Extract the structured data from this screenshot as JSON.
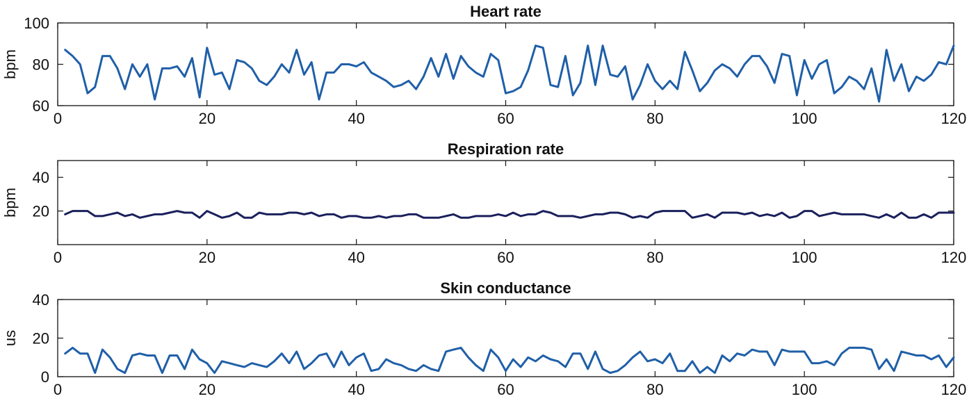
{
  "figure": {
    "background": "#ffffff",
    "axis_color": "#111111"
  },
  "chart_data": [
    {
      "type": "line",
      "title": "Heart rate",
      "ylabel": "bpm",
      "xlabel": "",
      "xlim": [
        0,
        120
      ],
      "ylim": [
        60,
        100
      ],
      "xticks": [
        0,
        20,
        40,
        60,
        80,
        100,
        120
      ],
      "yticks": [
        60,
        80,
        100
      ],
      "line_color": "#1f5fa8",
      "series": [
        {
          "name": "Heart rate",
          "x": [
            1,
            2,
            3,
            4,
            5,
            6,
            7,
            8,
            9,
            10,
            11,
            12,
            13,
            14,
            15,
            16,
            17,
            18,
            19,
            20,
            21,
            22,
            23,
            24,
            25,
            26,
            27,
            28,
            29,
            30,
            31,
            32,
            33,
            34,
            35,
            36,
            37,
            38,
            39,
            40,
            41,
            42,
            43,
            44,
            45,
            46,
            47,
            48,
            49,
            50,
            51,
            52,
            53,
            54,
            55,
            56,
            57,
            58,
            59,
            60,
            61,
            62,
            63,
            64,
            65,
            66,
            67,
            68,
            69,
            70,
            71,
            72,
            73,
            74,
            75,
            76,
            77,
            78,
            79,
            80,
            81,
            82,
            83,
            84,
            85,
            86,
            87,
            88,
            89,
            90,
            91,
            92,
            93,
            94,
            95,
            96,
            97,
            98,
            99,
            100,
            101,
            102,
            103,
            104,
            105,
            106,
            107,
            108,
            109,
            110,
            111,
            112,
            113,
            114,
            115,
            116,
            117,
            118,
            119,
            120
          ],
          "values": [
            87,
            84,
            80,
            66,
            69,
            84,
            84,
            78,
            68,
            80,
            74,
            80,
            63,
            78,
            78,
            79,
            74,
            83,
            64,
            88,
            75,
            76,
            68,
            82,
            81,
            78,
            72,
            70,
            74,
            80,
            76,
            87,
            75,
            81,
            63,
            76,
            76,
            80,
            80,
            79,
            81,
            76,
            74,
            72,
            69,
            70,
            72,
            68,
            74,
            83,
            74,
            85,
            73,
            84,
            79,
            76,
            74,
            85,
            82,
            66,
            67,
            69,
            77,
            89,
            88,
            70,
            69,
            84,
            65,
            71,
            89,
            70,
            89,
            75,
            74,
            79,
            63,
            70,
            80,
            72,
            68,
            72,
            68,
            86,
            77,
            67,
            71,
            77,
            80,
            78,
            74,
            80,
            84,
            84,
            79,
            71,
            85,
            84,
            65,
            82,
            73,
            80,
            82,
            66,
            69,
            74,
            72,
            68,
            78,
            62,
            87,
            72,
            80,
            67,
            74,
            72,
            75,
            81,
            80,
            89
          ]
        }
      ]
    },
    {
      "type": "line",
      "title": "Respiration rate",
      "ylabel": "bpm",
      "xlabel": "",
      "xlim": [
        0,
        120
      ],
      "ylim": [
        0,
        50
      ],
      "xticks": [
        0,
        20,
        40,
        60,
        80,
        100,
        120
      ],
      "yticks": [
        20,
        40
      ],
      "line_color": "#1a1f5c",
      "series": [
        {
          "name": "Respiration rate",
          "x": [
            1,
            2,
            3,
            4,
            5,
            6,
            7,
            8,
            9,
            10,
            11,
            12,
            13,
            14,
            15,
            16,
            17,
            18,
            19,
            20,
            21,
            22,
            23,
            24,
            25,
            26,
            27,
            28,
            29,
            30,
            31,
            32,
            33,
            34,
            35,
            36,
            37,
            38,
            39,
            40,
            41,
            42,
            43,
            44,
            45,
            46,
            47,
            48,
            49,
            50,
            51,
            52,
            53,
            54,
            55,
            56,
            57,
            58,
            59,
            60,
            61,
            62,
            63,
            64,
            65,
            66,
            67,
            68,
            69,
            70,
            71,
            72,
            73,
            74,
            75,
            76,
            77,
            78,
            79,
            80,
            81,
            82,
            83,
            84,
            85,
            86,
            87,
            88,
            89,
            90,
            91,
            92,
            93,
            94,
            95,
            96,
            97,
            98,
            99,
            100,
            101,
            102,
            103,
            104,
            105,
            106,
            107,
            108,
            109,
            110,
            111,
            112,
            113,
            114,
            115,
            116,
            117,
            118,
            119,
            120
          ],
          "values": [
            18,
            20,
            20,
            20,
            17,
            17,
            18,
            19,
            17,
            18,
            16,
            17,
            18,
            18,
            19,
            20,
            19,
            19,
            16,
            20,
            18,
            16,
            17,
            19,
            16,
            16,
            19,
            18,
            18,
            18,
            19,
            19,
            18,
            19,
            17,
            18,
            18,
            16,
            17,
            17,
            16,
            16,
            17,
            16,
            17,
            17,
            18,
            18,
            16,
            16,
            16,
            17,
            18,
            16,
            16,
            17,
            17,
            17,
            18,
            17,
            19,
            17,
            18,
            18,
            20,
            19,
            17,
            17,
            17,
            16,
            17,
            18,
            18,
            19,
            19,
            18,
            16,
            17,
            16,
            19,
            20,
            20,
            20,
            20,
            16,
            17,
            18,
            16,
            19,
            19,
            19,
            18,
            19,
            17,
            18,
            17,
            19,
            16,
            17,
            20,
            20,
            17,
            18,
            19,
            18,
            18,
            18,
            18,
            17,
            16,
            18,
            16,
            19,
            16,
            16,
            18,
            16,
            19,
            19,
            19
          ]
        }
      ]
    },
    {
      "type": "line",
      "title": "Skin conductance",
      "ylabel": "us",
      "xlabel": "",
      "xlim": [
        0,
        120
      ],
      "ylim": [
        0,
        40
      ],
      "xticks": [
        0,
        20,
        40,
        60,
        80,
        100,
        120
      ],
      "yticks": [
        0,
        20,
        40
      ],
      "line_color": "#1f5fa8",
      "series": [
        {
          "name": "Skin conductance",
          "x": [
            1,
            2,
            3,
            4,
            5,
            6,
            7,
            8,
            9,
            10,
            11,
            12,
            13,
            14,
            15,
            16,
            17,
            18,
            19,
            20,
            21,
            22,
            23,
            24,
            25,
            26,
            27,
            28,
            29,
            30,
            31,
            32,
            33,
            34,
            35,
            36,
            37,
            38,
            39,
            40,
            41,
            42,
            43,
            44,
            45,
            46,
            47,
            48,
            49,
            50,
            51,
            52,
            53,
            54,
            55,
            56,
            57,
            58,
            59,
            60,
            61,
            62,
            63,
            64,
            65,
            66,
            67,
            68,
            69,
            70,
            71,
            72,
            73,
            74,
            75,
            76,
            77,
            78,
            79,
            80,
            81,
            82,
            83,
            84,
            85,
            86,
            87,
            88,
            89,
            90,
            91,
            92,
            93,
            94,
            95,
            96,
            97,
            98,
            99,
            100,
            101,
            102,
            103,
            104,
            105,
            106,
            107,
            108,
            109,
            110,
            111,
            112,
            113,
            114,
            115,
            116,
            117,
            118,
            119,
            120
          ],
          "values": [
            12,
            15,
            12,
            12,
            2,
            14,
            10,
            4,
            2,
            11,
            12,
            11,
            11,
            2,
            11,
            11,
            4,
            14,
            9,
            7,
            2,
            8,
            7,
            6,
            5,
            7,
            6,
            5,
            8,
            12,
            7,
            13,
            4,
            7,
            11,
            12,
            5,
            13,
            6,
            10,
            12,
            3,
            4,
            9,
            7,
            6,
            4,
            3,
            6,
            4,
            3,
            13,
            14,
            15,
            10,
            6,
            3,
            14,
            10,
            3,
            9,
            5,
            10,
            8,
            11,
            9,
            8,
            5,
            12,
            12,
            4,
            13,
            4,
            2,
            3,
            6,
            10,
            13,
            8,
            9,
            7,
            12,
            3,
            3,
            8,
            2,
            5,
            2,
            11,
            8,
            12,
            11,
            14,
            13,
            13,
            6,
            14,
            13,
            13,
            13,
            7,
            7,
            8,
            6,
            12,
            15,
            15,
            15,
            14,
            4,
            9,
            3,
            13,
            12,
            11,
            11,
            9,
            11,
            5,
            10
          ]
        }
      ]
    }
  ]
}
